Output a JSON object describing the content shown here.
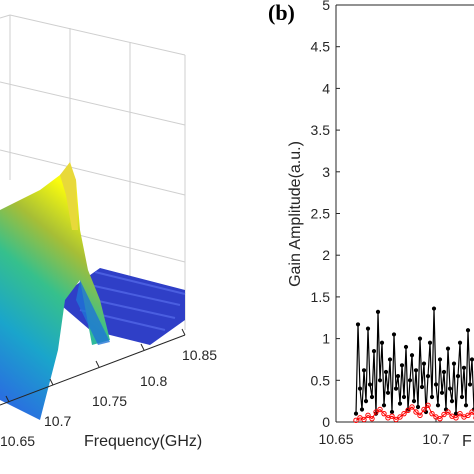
{
  "chart_data": [
    {
      "type": "area",
      "panel": "3d-surface",
      "xlabel": "Frequency(GHz)",
      "x_ticks": [
        "10.65",
        "10.7",
        "10.75",
        "10.8",
        "10.85"
      ],
      "colormap": [
        "#3e26a8",
        "#2e5fe6",
        "#1aa5cb",
        "#36c08c",
        "#a6be36",
        "#f9c93a",
        "#f9fb0e"
      ],
      "notes_visible": "surface peak near 10.73 GHz, flat noise floor toward 10.85 GHz"
    },
    {
      "type": "line",
      "panel_label": "(b)",
      "ylabel": "Gain Amplitude(a.u.)",
      "xlabel": "F",
      "ylim": [
        0,
        5
      ],
      "xlim": [
        10.65,
        10.75
      ],
      "y_ticks": [
        "0",
        "0.5",
        "1",
        "1.5",
        "2",
        "2.5",
        "3",
        "3.5",
        "4",
        "4.5",
        "5"
      ],
      "x_ticks": [
        "10.65",
        "10.7"
      ],
      "grid": false,
      "series": [
        {
          "color": "#000000",
          "marker": "dot",
          "x": [
            10.66,
            10.661,
            10.662,
            10.663,
            10.664,
            10.665,
            10.666,
            10.667,
            10.668,
            10.669,
            10.67,
            10.671,
            10.672,
            10.673,
            10.674,
            10.675,
            10.676,
            10.677,
            10.678,
            10.679,
            10.68,
            10.681,
            10.682,
            10.683,
            10.684,
            10.685,
            10.686,
            10.687,
            10.688,
            10.689,
            10.69,
            10.691,
            10.692,
            10.693,
            10.694,
            10.695,
            10.696,
            10.697,
            10.698,
            10.699,
            10.7,
            10.701,
            10.702,
            10.703,
            10.704,
            10.705,
            10.706,
            10.707,
            10.708,
            10.709,
            10.71,
            10.711,
            10.712,
            10.713,
            10.714,
            10.715,
            10.716,
            10.717,
            10.718,
            10.719,
            10.72,
            10.721,
            10.722,
            10.723,
            10.724,
            10.725,
            10.726,
            10.727,
            10.728
          ],
          "values": [
            0.1,
            1.17,
            0.4,
            0.15,
            0.62,
            0.25,
            1.12,
            0.45,
            0.3,
            0.85,
            0.1,
            1.32,
            0.5,
            0.95,
            0.2,
            0.6,
            0.35,
            0.75,
            0.12,
            1.05,
            0.4,
            0.55,
            0.22,
            0.68,
            0.3,
            0.9,
            0.15,
            0.5,
            0.8,
            0.25,
            0.62,
            0.18,
            1.0,
            0.42,
            0.7,
            0.12,
            0.55,
            0.95,
            0.3,
            1.36,
            0.45,
            0.2,
            0.75,
            0.35,
            0.6,
            0.15,
            0.88,
            0.4,
            0.25,
            0.7,
            0.1,
            0.55,
            0.95,
            0.3,
            0.65,
            0.2,
            1.1,
            0.45,
            0.75,
            0.15,
            0.6,
            0.35,
            1.15,
            0.8,
            2.3,
            0.5,
            0.4,
            0.2,
            1.05
          ]
        },
        {
          "color": "#ff0000",
          "marker": "circle",
          "x": [
            10.66,
            10.662,
            10.664,
            10.666,
            10.668,
            10.67,
            10.672,
            10.674,
            10.676,
            10.678,
            10.68,
            10.682,
            10.684,
            10.686,
            10.688,
            10.69,
            10.692,
            10.694,
            10.696,
            10.698,
            10.7,
            10.702,
            10.704,
            10.706,
            10.708,
            10.71,
            10.712,
            10.714,
            10.716,
            10.718,
            10.72,
            10.722,
            10.724,
            10.726,
            10.728
          ],
          "values": [
            0.02,
            0.05,
            0.03,
            0.08,
            0.04,
            0.12,
            0.15,
            0.1,
            0.05,
            0.07,
            0.03,
            0.06,
            0.1,
            0.14,
            0.18,
            0.12,
            0.08,
            0.15,
            0.2,
            0.1,
            0.06,
            0.04,
            0.09,
            0.12,
            0.07,
            0.05,
            0.1,
            0.06,
            0.08,
            0.12,
            0.05,
            0.09,
            0.06,
            0.04,
            0.07
          ]
        }
      ]
    }
  ]
}
